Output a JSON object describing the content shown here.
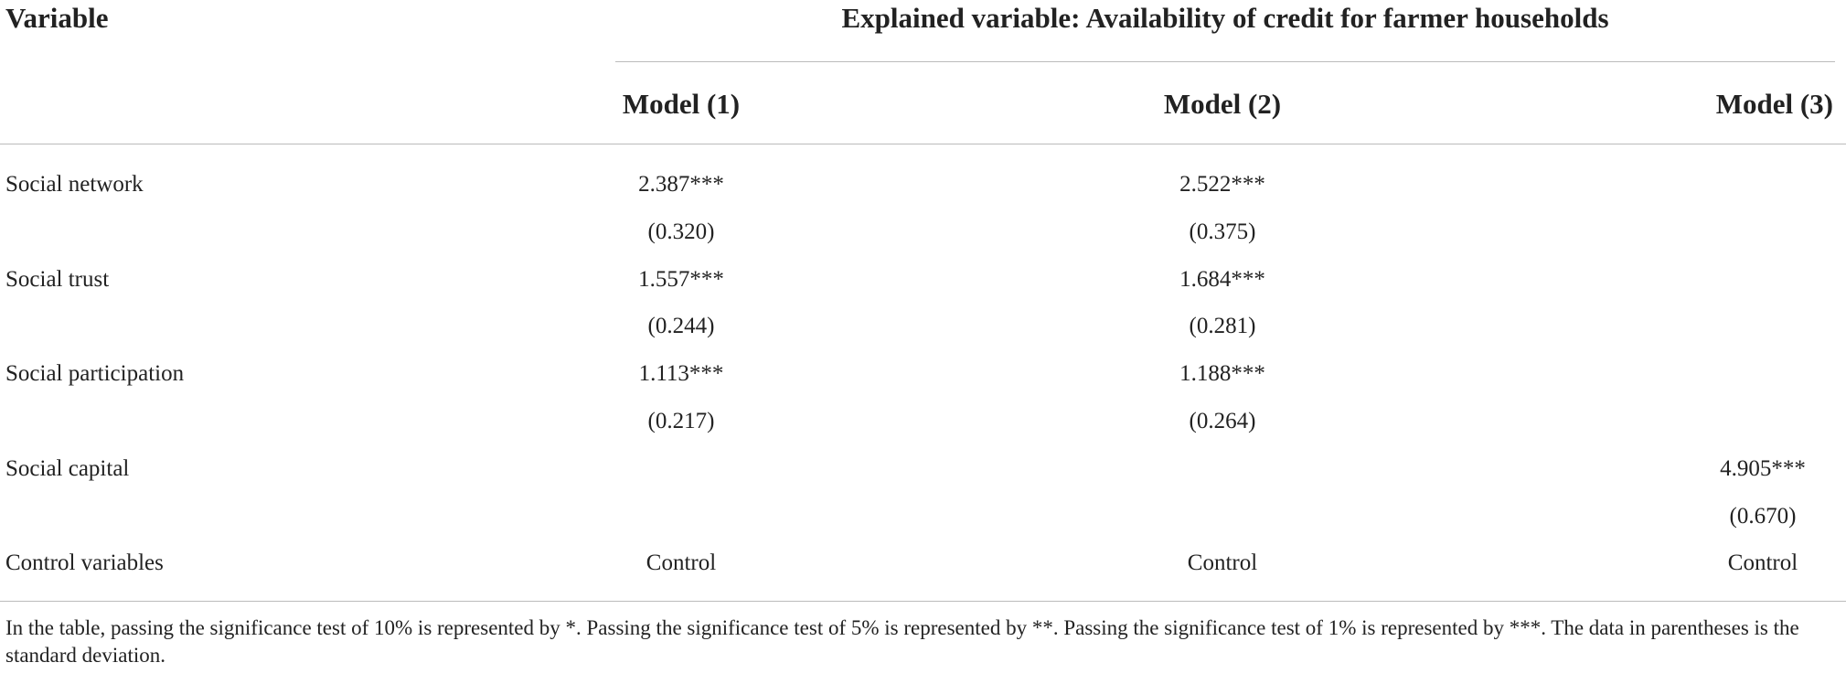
{
  "table": {
    "stub_header": "Variable",
    "spanner": "Explained variable: Availability of credit for farmer households",
    "columns": [
      "Model (1)",
      "Model (2)",
      "Model (3)"
    ],
    "rows": [
      [
        "Social network",
        "2.387***",
        "2.522***",
        null
      ],
      [
        null,
        "(0.320)",
        "(0.375)",
        null
      ],
      [
        "Social trust",
        "1.557***",
        "1.684***",
        null
      ],
      [
        null,
        "(0.244)",
        "(0.281)",
        null
      ],
      [
        "Social participation",
        "1.113***",
        "1.188***",
        null
      ],
      [
        null,
        "(0.217)",
        "(0.264)",
        null
      ],
      [
        "Social capital",
        null,
        null,
        "4.905***"
      ],
      [
        null,
        null,
        null,
        "(0.670)"
      ],
      [
        "Control variables",
        "Control",
        "Control",
        "Control"
      ]
    ]
  },
  "footnote": "In the table, passing the significance test of 10% is represented by *. Passing the significance test of 5% is represented by **. Passing the significance test of 1% is represented by ***. The data in parentheses is the standard deviation."
}
